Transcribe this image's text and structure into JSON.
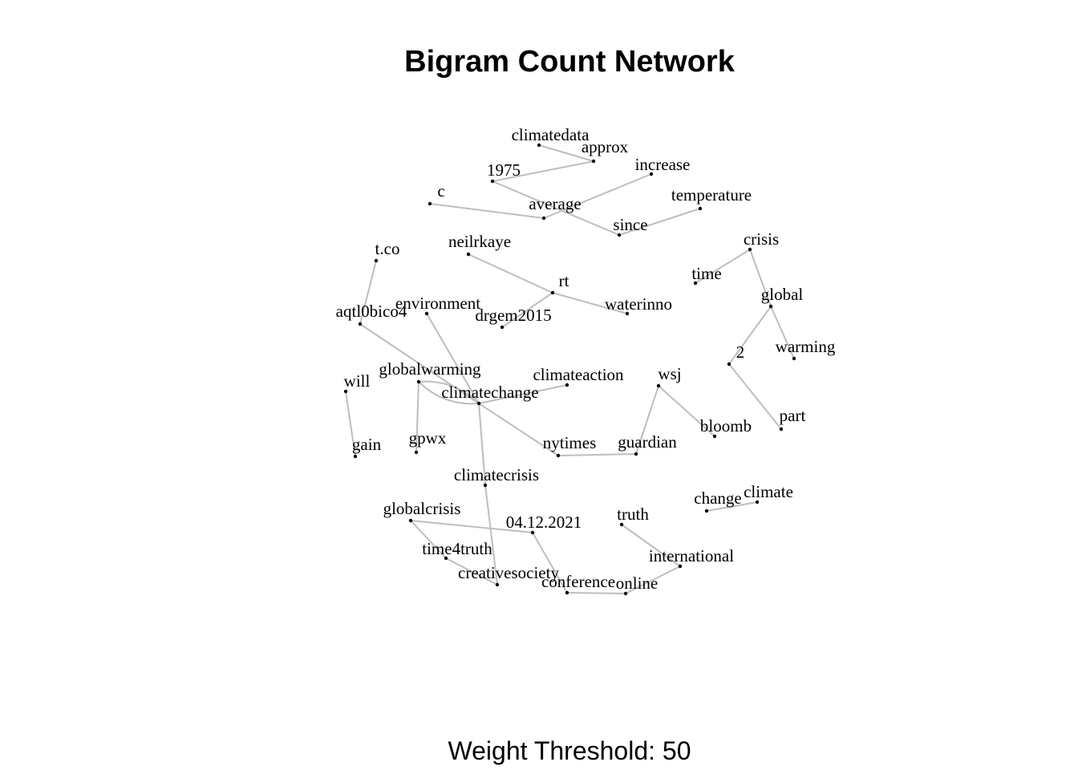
{
  "title": "Bigram Count Network",
  "caption": "Weight Threshold: 50",
  "colors": {
    "edge": "#bebebe",
    "node": "#000000",
    "label": "#000000"
  },
  "network": {
    "nodes": [
      {
        "id": "climatedata",
        "label": "climatedata"
      },
      {
        "id": "approx",
        "label": "approx"
      },
      {
        "id": "1975",
        "label": "1975"
      },
      {
        "id": "increase",
        "label": "increase"
      },
      {
        "id": "c",
        "label": "c"
      },
      {
        "id": "average",
        "label": "average"
      },
      {
        "id": "temperature",
        "label": "temperature"
      },
      {
        "id": "since",
        "label": "since"
      },
      {
        "id": "neilrkaye",
        "label": "neilrkaye"
      },
      {
        "id": "rt",
        "label": "rt"
      },
      {
        "id": "waterinno",
        "label": "waterinno"
      },
      {
        "id": "drgem2015",
        "label": "drgem2015"
      },
      {
        "id": "tco",
        "label": "t.co"
      },
      {
        "id": "aqtl0bico4",
        "label": "aqtl0bico4"
      },
      {
        "id": "environment",
        "label": "environment"
      },
      {
        "id": "crisis",
        "label": "crisis"
      },
      {
        "id": "time",
        "label": "time"
      },
      {
        "id": "global",
        "label": "global"
      },
      {
        "id": "warming",
        "label": "warming"
      },
      {
        "id": "n2",
        "label": "2"
      },
      {
        "id": "part",
        "label": "part"
      },
      {
        "id": "will",
        "label": "will"
      },
      {
        "id": "gain",
        "label": "gain"
      },
      {
        "id": "globalwarming",
        "label": "globalwarming"
      },
      {
        "id": "climatechange",
        "label": "climatechange"
      },
      {
        "id": "climateaction",
        "label": "climateaction"
      },
      {
        "id": "gpwx",
        "label": "gpwx"
      },
      {
        "id": "nytimes",
        "label": "nytimes"
      },
      {
        "id": "guardian",
        "label": "guardian"
      },
      {
        "id": "wsj",
        "label": "wsj"
      },
      {
        "id": "bloomb",
        "label": "bloomb"
      },
      {
        "id": "climatecrisis",
        "label": "climatecrisis"
      },
      {
        "id": "change",
        "label": "change"
      },
      {
        "id": "climate",
        "label": "climate"
      },
      {
        "id": "globalcrisis",
        "label": "globalcrisis"
      },
      {
        "id": "d04122021",
        "label": "04.12.2021"
      },
      {
        "id": "truth",
        "label": "truth"
      },
      {
        "id": "time4truth",
        "label": "time4truth"
      },
      {
        "id": "international",
        "label": "international"
      },
      {
        "id": "creativesociety",
        "label": "creativesociety"
      },
      {
        "id": "conference",
        "label": "conference"
      },
      {
        "id": "online",
        "label": "online"
      }
    ],
    "edges": [
      {
        "from": "climatedata",
        "to": "approx"
      },
      {
        "from": "approx",
        "to": "1975"
      },
      {
        "from": "1975",
        "to": "since"
      },
      {
        "from": "c",
        "to": "average"
      },
      {
        "from": "average",
        "to": "increase"
      },
      {
        "from": "since",
        "to": "temperature"
      },
      {
        "from": "neilrkaye",
        "to": "rt"
      },
      {
        "from": "rt",
        "to": "waterinno"
      },
      {
        "from": "rt",
        "to": "drgem2015"
      },
      {
        "from": "tco",
        "to": "aqtl0bico4"
      },
      {
        "from": "aqtl0bico4",
        "to": "climatechange"
      },
      {
        "from": "environment",
        "to": "climatechange"
      },
      {
        "from": "crisis",
        "to": "time"
      },
      {
        "from": "crisis",
        "to": "global"
      },
      {
        "from": "global",
        "to": "warming"
      },
      {
        "from": "global",
        "to": "n2"
      },
      {
        "from": "n2",
        "to": "part"
      },
      {
        "from": "will",
        "to": "gain"
      },
      {
        "from": "globalwarming",
        "to": "climatechange"
      },
      {
        "from": "climatechange",
        "to": "globalwarming"
      },
      {
        "from": "globalwarming",
        "to": "gpwx"
      },
      {
        "from": "climatechange",
        "to": "climateaction"
      },
      {
        "from": "climatechange",
        "to": "nytimes"
      },
      {
        "from": "climatechange",
        "to": "climatecrisis"
      },
      {
        "from": "nytimes",
        "to": "guardian"
      },
      {
        "from": "guardian",
        "to": "wsj"
      },
      {
        "from": "wsj",
        "to": "bloomb"
      },
      {
        "from": "climatecrisis",
        "to": "creativesociety"
      },
      {
        "from": "change",
        "to": "climate"
      },
      {
        "from": "globalcrisis",
        "to": "d04122021"
      },
      {
        "from": "globalcrisis",
        "to": "time4truth"
      },
      {
        "from": "time4truth",
        "to": "creativesociety"
      },
      {
        "from": "d04122021",
        "to": "conference"
      },
      {
        "from": "conference",
        "to": "online"
      },
      {
        "from": "online",
        "to": "international"
      },
      {
        "from": "truth",
        "to": "international"
      }
    ]
  }
}
